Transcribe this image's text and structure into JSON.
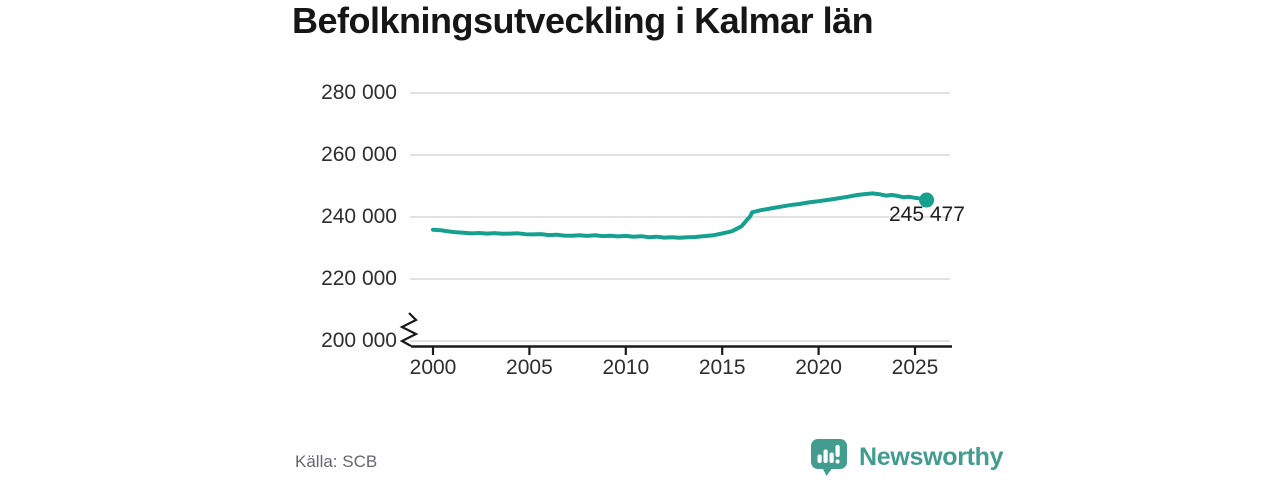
{
  "title": "Befolkningsutveckling i Kalmar län",
  "source": "Källa: SCB",
  "annotation": "245 477",
  "brand": {
    "name": "Newsworthy",
    "color": "#429d90"
  },
  "colors": {
    "line": "#16a08f",
    "grid": "#d9d9d9",
    "axis": "#1a1a1a",
    "tick_label": "#2e2e2e",
    "title": "#161616",
    "source_text": "#666670"
  },
  "chart_data": {
    "type": "line",
    "title": "Befolkningsutveckling i Kalmar län",
    "xlabel": "",
    "ylabel": "",
    "source": "Källa: SCB",
    "legend": "none",
    "grid": "horizontal",
    "axis_break_at_y_bottom": true,
    "ylim": [
      200000,
      280000
    ],
    "xlim": [
      2000,
      2025.6
    ],
    "yticks": [
      {
        "value": 200000,
        "label": "200 000"
      },
      {
        "value": 220000,
        "label": "220 000"
      },
      {
        "value": 240000,
        "label": "240 000"
      },
      {
        "value": 260000,
        "label": "260 000"
      },
      {
        "value": 280000,
        "label": "280 000"
      }
    ],
    "xticks": [
      {
        "value": 2000,
        "label": "2000"
      },
      {
        "value": 2005,
        "label": "2005"
      },
      {
        "value": 2010,
        "label": "2010"
      },
      {
        "value": 2015,
        "label": "2015"
      },
      {
        "value": 2020,
        "label": "2020"
      },
      {
        "value": 2025,
        "label": "2025"
      }
    ],
    "series": [
      {
        "name": "Kalmar län",
        "points": [
          [
            2000.0,
            235900
          ],
          [
            2000.4,
            235750
          ],
          [
            2000.8,
            235350
          ],
          [
            2001.2,
            235050
          ],
          [
            2001.6,
            234900
          ],
          [
            2002.0,
            234700
          ],
          [
            2002.4,
            234850
          ],
          [
            2002.8,
            234650
          ],
          [
            2003.2,
            234800
          ],
          [
            2003.6,
            234600
          ],
          [
            2004.0,
            234650
          ],
          [
            2004.4,
            234750
          ],
          [
            2004.8,
            234450
          ],
          [
            2005.2,
            234400
          ],
          [
            2005.6,
            234500
          ],
          [
            2006.0,
            234150
          ],
          [
            2006.4,
            234300
          ],
          [
            2006.8,
            234000
          ],
          [
            2007.2,
            233950
          ],
          [
            2007.6,
            234100
          ],
          [
            2008.0,
            233900
          ],
          [
            2008.4,
            234100
          ],
          [
            2008.8,
            233850
          ],
          [
            2009.2,
            233950
          ],
          [
            2009.6,
            233750
          ],
          [
            2010.0,
            233900
          ],
          [
            2010.4,
            233650
          ],
          [
            2010.8,
            233800
          ],
          [
            2011.2,
            233500
          ],
          [
            2011.6,
            233650
          ],
          [
            2012.0,
            233350
          ],
          [
            2012.4,
            233500
          ],
          [
            2012.8,
            233300
          ],
          [
            2013.2,
            233450
          ],
          [
            2013.6,
            233550
          ],
          [
            2014.0,
            233800
          ],
          [
            2014.5,
            234050
          ],
          [
            2015.0,
            234700
          ],
          [
            2015.5,
            235400
          ],
          [
            2016.0,
            237000
          ],
          [
            2016.3,
            239200
          ],
          [
            2016.45,
            240200
          ],
          [
            2016.55,
            241500
          ],
          [
            2017.0,
            242200
          ],
          [
            2017.5,
            242750
          ],
          [
            2018.0,
            243300
          ],
          [
            2018.5,
            243800
          ],
          [
            2019.0,
            244200
          ],
          [
            2019.5,
            244700
          ],
          [
            2020.0,
            245100
          ],
          [
            2020.5,
            245500
          ],
          [
            2021.0,
            246000
          ],
          [
            2021.5,
            246500
          ],
          [
            2022.0,
            247100
          ],
          [
            2022.4,
            247400
          ],
          [
            2022.8,
            247600
          ],
          [
            2023.2,
            247300
          ],
          [
            2023.5,
            246900
          ],
          [
            2023.8,
            247100
          ],
          [
            2024.1,
            246800
          ],
          [
            2024.4,
            246400
          ],
          [
            2024.7,
            246500
          ],
          [
            2025.0,
            246200
          ],
          [
            2025.3,
            245900
          ],
          [
            2025.6,
            245477
          ]
        ]
      }
    ],
    "last_point": {
      "x": 2025.6,
      "value": 245477,
      "label": "245 477"
    }
  }
}
